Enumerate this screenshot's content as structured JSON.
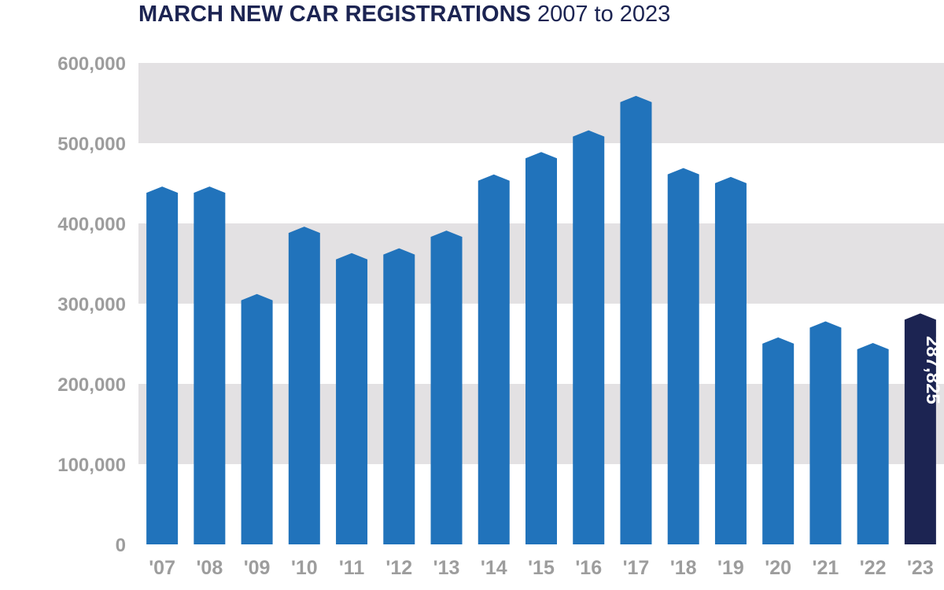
{
  "chart_data": {
    "type": "bar",
    "title": "MARCH NEW CAR REGISTRATIONS",
    "subtitle": "2007 to 2023",
    "categories": [
      "'07",
      "'08",
      "'09",
      "'10",
      "'11",
      "'12",
      "'13",
      "'14",
      "'15",
      "'16",
      "'17",
      "'18",
      "'19",
      "'20",
      "'21",
      "'22",
      "'23"
    ],
    "values": [
      446000,
      446000,
      312000,
      396000,
      363000,
      369000,
      391000,
      461000,
      489000,
      516000,
      559000,
      469000,
      458000,
      258000,
      278000,
      251000,
      287825
    ],
    "highlight_label": "287,825",
    "ylim": [
      0,
      600000
    ],
    "yticks": [
      0,
      100000,
      200000,
      300000,
      400000,
      500000,
      600000
    ],
    "ytick_labels": [
      "0",
      "100,000",
      "200,000",
      "300,000",
      "400,000",
      "500,000",
      "600,000"
    ],
    "grid": "alternating bands",
    "colors": {
      "bar": "#2173bb",
      "highlight": "#1c2452",
      "band": "#e3e1e3",
      "tick": "#9d9d9d",
      "title": "#1c2452"
    }
  }
}
